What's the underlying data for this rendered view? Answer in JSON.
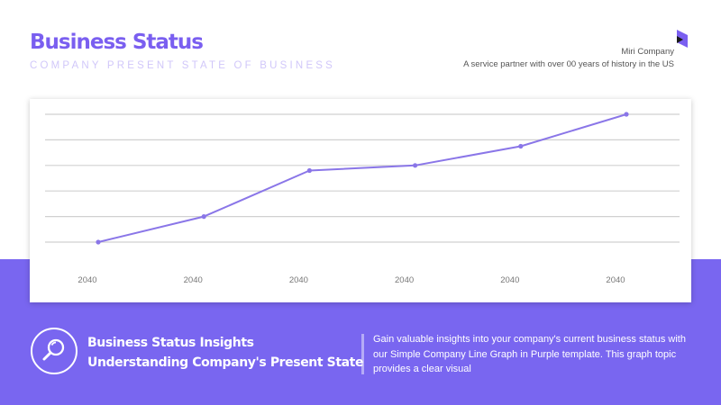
{
  "colors": {
    "accent": "#7b68ee",
    "band": "#7966f0",
    "title": "#7a5ff0",
    "line": "#8a76e8",
    "grid": "#d0d0d0",
    "tick_text": "#777777"
  },
  "header": {
    "title": "Business Status",
    "subtitle": "COMPANY PRESENT STATE OF BUSINESS",
    "company": "Miri Company",
    "tagline": "A service partner with over 00 years of history in the US",
    "logo_icon": "cube-logo-icon"
  },
  "footer": {
    "icon": "magnifier-icon",
    "insight_title_1": "Business Status Insights",
    "insight_title_2": "Understanding Company's Present State",
    "description": "Gain valuable insights into your company's current business status with our Simple Company Line Graph in Purple template. This graph topic provides a clear visual"
  },
  "chart_data": {
    "type": "line",
    "categories": [
      "2040",
      "2040",
      "2040",
      "2040",
      "2040",
      "2040"
    ],
    "series": [
      {
        "values": [
          0,
          1,
          2.8,
          3,
          3.75,
          5
        ]
      }
    ],
    "ylim": [
      0,
      5
    ],
    "grid": true,
    "legend": "none"
  }
}
